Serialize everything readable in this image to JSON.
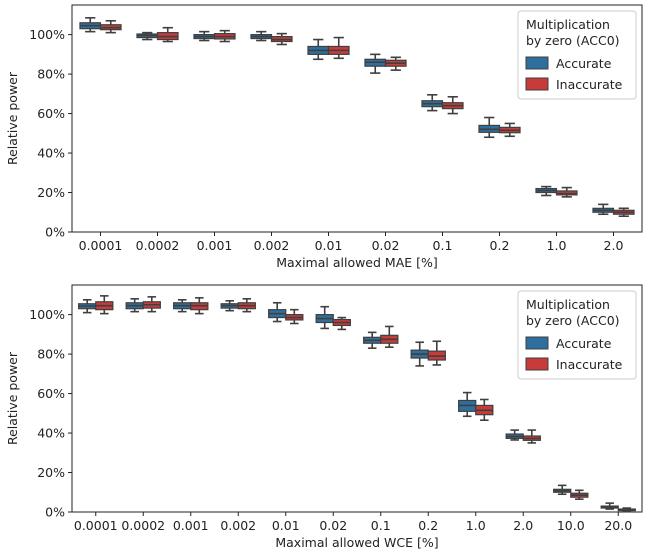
{
  "colors": {
    "accurate": "#2e6f9e",
    "inaccurate": "#c83b3b",
    "whisker": "#3f3f3f"
  },
  "chart_data": [
    {
      "type": "boxplot",
      "xlabel": "Maximal allowed MAE [%]",
      "ylabel": "Relative power",
      "ylim": [
        0,
        115
      ],
      "yticks": [
        "0%",
        "20%",
        "40%",
        "60%",
        "80%",
        "100%"
      ],
      "ytick_values": [
        0,
        20,
        40,
        60,
        80,
        100
      ],
      "categories": [
        "0.0001",
        "0.0002",
        "0.001",
        "0.002",
        "0.01",
        "0.02",
        "0.1",
        "0.2",
        "1.0",
        "2.0"
      ],
      "legend": {
        "title_line1": "Multiplication",
        "title_line2": "by zero (ACC0)",
        "placement": "top-right"
      },
      "series": [
        {
          "name": "Accurate",
          "color": "#2e6f9e",
          "boxes": [
            {
              "min": 101.5,
              "q1": 103,
              "median": 104.5,
              "q3": 106,
              "max": 108.5
            },
            {
              "min": 97.5,
              "q1": 98.5,
              "median": 99.5,
              "q3": 100.3,
              "max": 101
            },
            {
              "min": 97,
              "q1": 98,
              "median": 99,
              "q3": 100,
              "max": 101.5
            },
            {
              "min": 97,
              "q1": 98,
              "median": 99,
              "q3": 100,
              "max": 101.5
            },
            {
              "min": 87.5,
              "q1": 90,
              "median": 92,
              "q3": 94,
              "max": 97.5
            },
            {
              "min": 80.5,
              "q1": 84,
              "median": 86,
              "q3": 87.5,
              "max": 90
            },
            {
              "min": 61.5,
              "q1": 63.5,
              "median": 65,
              "q3": 66.5,
              "max": 69.5
            },
            {
              "min": 48,
              "q1": 50.5,
              "median": 52,
              "q3": 54,
              "max": 58
            },
            {
              "min": 18.5,
              "q1": 20,
              "median": 21,
              "q3": 22,
              "max": 23
            },
            {
              "min": 9,
              "q1": 10,
              "median": 11,
              "q3": 12,
              "max": 14
            }
          ]
        },
        {
          "name": "Inaccurate",
          "color": "#c83b3b",
          "boxes": [
            {
              "min": 101,
              "q1": 102.5,
              "median": 103.5,
              "q3": 105,
              "max": 107
            },
            {
              "min": 96.5,
              "q1": 97.5,
              "median": 99,
              "q3": 101,
              "max": 103.5
            },
            {
              "min": 96.5,
              "q1": 97.8,
              "median": 99,
              "q3": 100.5,
              "max": 102
            },
            {
              "min": 95,
              "q1": 96.5,
              "median": 97.5,
              "q3": 99,
              "max": 100.5
            },
            {
              "min": 88,
              "q1": 90,
              "median": 92,
              "q3": 94,
              "max": 98.5
            },
            {
              "min": 82,
              "q1": 84,
              "median": 85.5,
              "q3": 87,
              "max": 88.5
            },
            {
              "min": 60,
              "q1": 62.5,
              "median": 64,
              "q3": 65.5,
              "max": 68.5
            },
            {
              "min": 48.5,
              "q1": 50.3,
              "median": 51.5,
              "q3": 53,
              "max": 55
            },
            {
              "min": 17.8,
              "q1": 18.8,
              "median": 19.5,
              "q3": 20.8,
              "max": 22.5
            },
            {
              "min": 8,
              "q1": 9,
              "median": 10,
              "q3": 11,
              "max": 12
            }
          ]
        }
      ]
    },
    {
      "type": "boxplot",
      "xlabel": "Maximal allowed WCE [%]",
      "ylabel": "Relative power",
      "ylim": [
        0,
        115
      ],
      "yticks": [
        "0%",
        "20%",
        "40%",
        "60%",
        "80%",
        "100%"
      ],
      "ytick_values": [
        0,
        20,
        40,
        60,
        80,
        100
      ],
      "categories": [
        "0.0001",
        "0.0002",
        "0.001",
        "0.002",
        "0.01",
        "0.02",
        "0.1",
        "0.2",
        "1.0",
        "2.0",
        "10.0",
        "20.0"
      ],
      "legend": {
        "title_line1": "Multiplication",
        "title_line2": "by zero (ACC0)",
        "placement": "top-right"
      },
      "series": [
        {
          "name": "Accurate",
          "color": "#2e6f9e",
          "boxes": [
            {
              "min": 101,
              "q1": 103,
              "median": 104.3,
              "q3": 105.5,
              "max": 107.5
            },
            {
              "min": 101.5,
              "q1": 103,
              "median": 104.5,
              "q3": 106,
              "max": 108
            },
            {
              "min": 101.5,
              "q1": 103,
              "median": 104.5,
              "q3": 106,
              "max": 107.5
            },
            {
              "min": 102,
              "q1": 103.3,
              "median": 104.5,
              "q3": 105.5,
              "max": 107
            },
            {
              "min": 96.5,
              "q1": 98.5,
              "median": 100.5,
              "q3": 102.5,
              "max": 106
            },
            {
              "min": 93,
              "q1": 96,
              "median": 98,
              "q3": 100,
              "max": 104
            },
            {
              "min": 83,
              "q1": 85.5,
              "median": 87,
              "q3": 88.5,
              "max": 91
            },
            {
              "min": 74,
              "q1": 78,
              "median": 80,
              "q3": 82,
              "max": 86
            },
            {
              "min": 48.5,
              "q1": 51,
              "median": 54,
              "q3": 56.5,
              "max": 60.5
            },
            {
              "min": 36.5,
              "q1": 37.3,
              "median": 38.3,
              "q3": 39.5,
              "max": 41.5
            },
            {
              "min": 9,
              "q1": 10,
              "median": 10.8,
              "q3": 11.5,
              "max": 13.5
            },
            {
              "min": 1.5,
              "q1": 2,
              "median": 2.5,
              "q3": 3,
              "max": 4.5
            }
          ]
        },
        {
          "name": "Inaccurate",
          "color": "#c83b3b",
          "boxes": [
            {
              "min": 100.5,
              "q1": 102.5,
              "median": 104.5,
              "q3": 106.5,
              "max": 109.5
            },
            {
              "min": 101.5,
              "q1": 103.3,
              "median": 105,
              "q3": 106.5,
              "max": 109
            },
            {
              "min": 100.5,
              "q1": 102.5,
              "median": 104.5,
              "q3": 106,
              "max": 108.5
            },
            {
              "min": 101.5,
              "q1": 103,
              "median": 104.5,
              "q3": 106,
              "max": 108
            },
            {
              "min": 95.5,
              "q1": 97.3,
              "median": 98.5,
              "q3": 100,
              "max": 102.5
            },
            {
              "min": 92.5,
              "q1": 94.5,
              "median": 96,
              "q3": 97.5,
              "max": 98.5
            },
            {
              "min": 83.5,
              "q1": 85.5,
              "median": 87.5,
              "q3": 89.5,
              "max": 94
            },
            {
              "min": 74.5,
              "q1": 77,
              "median": 79,
              "q3": 81.5,
              "max": 86.5
            },
            {
              "min": 46.5,
              "q1": 49.3,
              "median": 51.5,
              "q3": 54,
              "max": 57
            },
            {
              "min": 35,
              "q1": 36.3,
              "median": 37.3,
              "q3": 38.5,
              "max": 41.5
            },
            {
              "min": 6.5,
              "q1": 7.5,
              "median": 8.5,
              "q3": 9.5,
              "max": 11
            },
            {
              "min": 0.3,
              "q1": 0.7,
              "median": 1,
              "q3": 1.5,
              "max": 2
            }
          ]
        }
      ]
    }
  ]
}
